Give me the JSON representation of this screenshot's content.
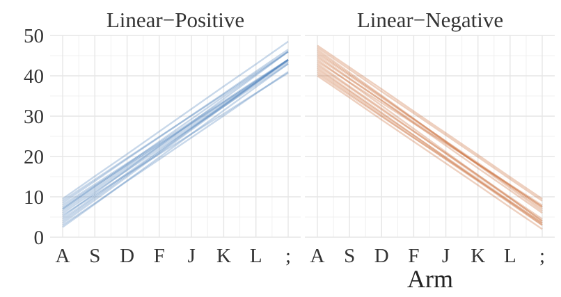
{
  "chart_data": {
    "type": "line",
    "xlabel": "Arm",
    "ylabel": "",
    "categories": [
      "A",
      "S",
      "D",
      "F",
      "J",
      "K",
      "L",
      ";"
    ],
    "yticks": [
      "0",
      "10",
      "20",
      "30",
      "40",
      "50"
    ],
    "ylim": [
      0,
      50
    ],
    "grid": true,
    "legend": "none",
    "panels": [
      {
        "title": "Linear−Positive",
        "color": "#4A7FB8",
        "lines": [
          [
            2.5,
            8.2,
            14.0,
            19.8,
            25.6,
            31.4,
            37.2,
            43.0
          ],
          [
            3.5,
            9.2,
            15.0,
            20.8,
            26.6,
            32.4,
            38.2,
            44.0
          ],
          [
            4.5,
            10.1,
            15.8,
            21.4,
            27.1,
            32.8,
            38.4,
            44.0
          ],
          [
            5.0,
            10.9,
            16.7,
            22.6,
            28.4,
            34.3,
            40.1,
            46.0
          ],
          [
            6.0,
            11.3,
            16.6,
            21.9,
            27.1,
            32.4,
            37.7,
            43.0
          ],
          [
            6.5,
            11.8,
            17.1,
            22.4,
            27.6,
            32.9,
            38.2,
            43.5
          ],
          [
            7.0,
            12.6,
            18.1,
            23.7,
            29.3,
            34.9,
            40.4,
            46.0
          ],
          [
            7.5,
            12.7,
            17.9,
            23.1,
            28.2,
            33.4,
            38.6,
            43.8
          ],
          [
            8.0,
            13.1,
            18.3,
            23.4,
            28.6,
            33.7,
            38.9,
            44.0
          ],
          [
            8.5,
            13.9,
            19.4,
            24.8,
            30.2,
            35.6,
            41.1,
            46.5
          ],
          [
            9.0,
            14.3,
            19.6,
            24.9,
            30.1,
            35.4,
            40.7,
            46.0
          ],
          [
            9.5,
            15.1,
            20.6,
            26.2,
            31.8,
            37.4,
            42.9,
            48.5
          ],
          [
            3.0,
            8.4,
            13.9,
            19.3,
            24.7,
            30.1,
            35.6,
            41.0
          ],
          [
            4.0,
            9.7,
            15.4,
            21.1,
            26.9,
            32.6,
            38.3,
            44.0
          ],
          [
            5.5,
            10.5,
            15.6,
            20.6,
            25.6,
            30.6,
            35.7,
            40.7
          ],
          [
            7.0,
            12.3,
            17.6,
            22.9,
            28.1,
            33.4,
            38.7,
            44.0
          ]
        ]
      },
      {
        "title": "Linear−Negative",
        "color": "#C8642C",
        "lines": [
          [
            40.0,
            34.6,
            29.1,
            23.7,
            18.3,
            12.9,
            7.4,
            2.0
          ],
          [
            41.0,
            35.6,
            30.1,
            24.7,
            19.3,
            13.9,
            8.4,
            3.0
          ],
          [
            42.0,
            36.4,
            30.9,
            25.3,
            19.7,
            14.1,
            8.6,
            3.0
          ],
          [
            43.0,
            37.4,
            31.9,
            26.3,
            20.7,
            15.1,
            9.6,
            4.0
          ],
          [
            44.0,
            38.3,
            32.6,
            26.9,
            21.1,
            15.4,
            9.7,
            4.0
          ],
          [
            45.0,
            39.4,
            33.9,
            28.3,
            22.7,
            17.1,
            11.6,
            6.0
          ],
          [
            46.0,
            40.4,
            34.9,
            29.3,
            23.7,
            18.1,
            12.6,
            7.0
          ],
          [
            47.0,
            41.6,
            36.1,
            30.7,
            25.3,
            19.9,
            14.4,
            9.0
          ],
          [
            47.5,
            42.1,
            36.7,
            31.2,
            25.8,
            20.4,
            14.9,
            9.5
          ],
          [
            43.5,
            38.4,
            33.3,
            28.2,
            23.2,
            18.1,
            13.0,
            7.9
          ],
          [
            40.5,
            35.2,
            29.9,
            24.6,
            19.4,
            14.1,
            8.8,
            3.5
          ],
          [
            46.5,
            40.8,
            35.1,
            29.4,
            23.6,
            17.9,
            12.2,
            6.5
          ],
          [
            42.5,
            37.1,
            31.6,
            26.2,
            20.8,
            15.4,
            9.9,
            4.5
          ],
          [
            44.5,
            39.2,
            33.9,
            28.6,
            23.4,
            18.1,
            12.8,
            7.5
          ],
          [
            45.5,
            40.1,
            34.6,
            29.2,
            23.8,
            18.4,
            12.9,
            7.5
          ],
          [
            41.5,
            36.1,
            30.6,
            25.2,
            19.8,
            14.4,
            8.9,
            3.5
          ]
        ]
      }
    ]
  }
}
